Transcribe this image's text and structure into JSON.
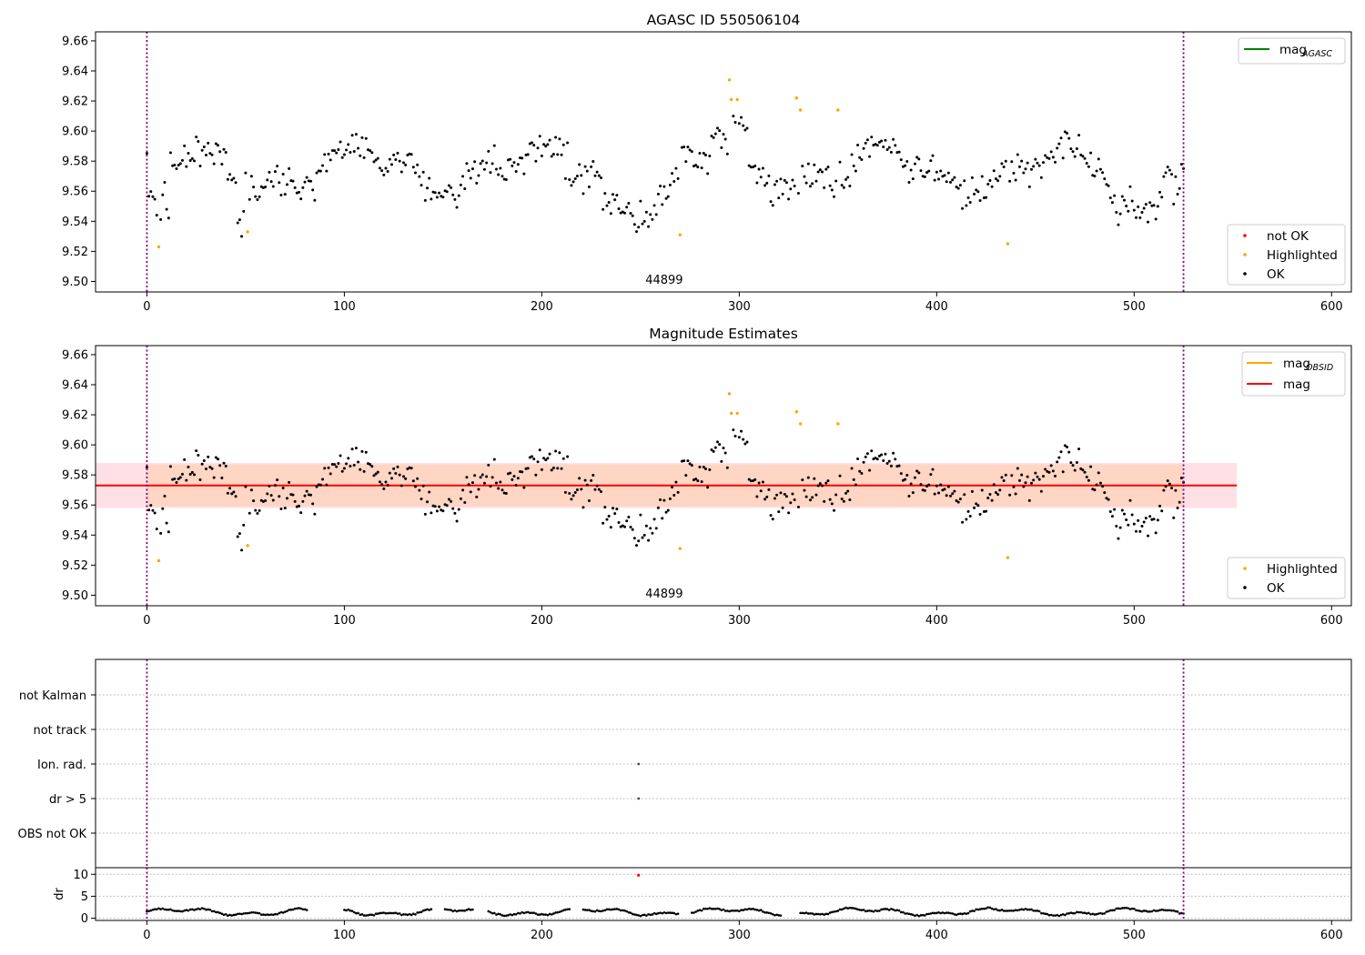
{
  "figure": {
    "title": "AGASC ID 550506104",
    "obsid_label": "44899"
  },
  "colors": {
    "ok": "#000000",
    "highlighted": "#ffa500",
    "not_ok": "#ff0000",
    "mag_line": "#ff0000",
    "mag_agasc_line": "#008000",
    "mag_obsid_line": "#ffa500",
    "band_outer": "#ffe0e6",
    "band_inner": "#ffd5c4",
    "obs_boundary": "#800080",
    "grid": "#b0b0b0"
  },
  "chart_data": [
    {
      "id": "top",
      "type": "scatter",
      "title": "AGASC ID 550506104",
      "xlim": [
        -26,
        610
      ],
      "ylim": [
        9.493,
        9.666
      ],
      "xticks": [
        0,
        100,
        200,
        300,
        400,
        500,
        600
      ],
      "yticks": [
        9.5,
        9.52,
        9.54,
        9.56,
        9.58,
        9.6,
        9.62,
        9.64,
        9.66
      ],
      "obs_boundaries": [
        0,
        525
      ],
      "line_legend": [
        {
          "label": "mag",
          "sub": "AGASC",
          "color": "#008000"
        }
      ],
      "point_legend": [
        {
          "label": "not OK",
          "color": "#ff0000"
        },
        {
          "label": "Highlighted",
          "color": "#ffa500"
        },
        {
          "label": "OK",
          "color": "#000000"
        }
      ],
      "highlighted": [
        [
          6,
          9.523
        ],
        [
          51,
          9.533
        ],
        [
          270,
          9.531
        ],
        [
          295,
          9.634
        ],
        [
          296,
          9.621
        ],
        [
          299,
          9.621
        ],
        [
          329,
          9.622
        ],
        [
          331,
          9.614
        ],
        [
          350,
          9.614
        ],
        [
          436,
          9.525
        ]
      ],
      "not_ok": []
    },
    {
      "id": "middle",
      "type": "scatter",
      "title": "Magnitude Estimates",
      "xlim": [
        -26,
        610
      ],
      "ylim": [
        9.493,
        9.666
      ],
      "xticks": [
        0,
        100,
        200,
        300,
        400,
        500,
        600
      ],
      "yticks": [
        9.5,
        9.52,
        9.54,
        9.56,
        9.58,
        9.6,
        9.62,
        9.64,
        9.66
      ],
      "obs_boundaries": [
        0,
        525
      ],
      "mag_mean": 9.573,
      "band_outer": [
        9.558,
        9.588
      ],
      "band_inner": [
        9.559,
        9.587
      ],
      "band_x": [
        -26,
        552
      ],
      "line_legend": [
        {
          "label": "mag",
          "sub": "OBSID",
          "color": "#ffa500"
        },
        {
          "label": "mag",
          "sub": "",
          "color": "#ff0000"
        }
      ],
      "point_legend": [
        {
          "label": "Highlighted",
          "color": "#ffa500"
        },
        {
          "label": "OK",
          "color": "#000000"
        }
      ],
      "highlighted": [
        [
          6,
          9.523
        ],
        [
          51,
          9.533
        ],
        [
          270,
          9.531
        ],
        [
          295,
          9.634
        ],
        [
          296,
          9.621
        ],
        [
          299,
          9.621
        ],
        [
          329,
          9.622
        ],
        [
          331,
          9.614
        ],
        [
          350,
          9.614
        ],
        [
          436,
          9.525
        ]
      ]
    },
    {
      "id": "flags",
      "type": "scatter",
      "xlim": [
        -26,
        610
      ],
      "categories": [
        "not Kalman",
        "not track",
        "Ion. rad.",
        "dr > 5",
        "OBS not OK"
      ],
      "obs_boundaries": [
        0,
        525
      ],
      "flag_points": [
        {
          "category": "Ion. rad.",
          "x": 249
        },
        {
          "category": "dr > 5",
          "x": 249
        }
      ]
    },
    {
      "id": "dr",
      "type": "scatter",
      "ylabel": "dr",
      "xlim": [
        -26,
        610
      ],
      "ylim": [
        -0.5,
        11.5
      ],
      "yticks": [
        0,
        5,
        10
      ],
      "xticks": [
        0,
        100,
        200,
        300,
        400,
        500,
        600
      ],
      "obs_boundaries": [
        0,
        525
      ],
      "gaps": [
        [
          82,
          99
        ],
        [
          145,
          150
        ],
        [
          166,
          172
        ],
        [
          215,
          220
        ],
        [
          270,
          275
        ],
        [
          322,
          330
        ]
      ],
      "outliers": [
        [
          249,
          9.8
        ]
      ]
    }
  ]
}
